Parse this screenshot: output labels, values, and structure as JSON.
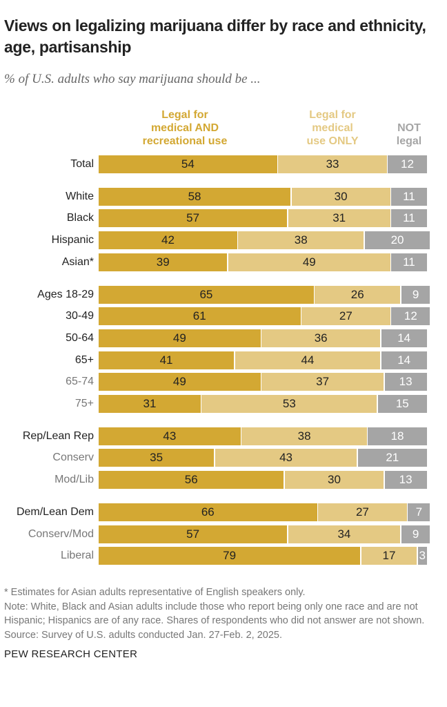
{
  "chart_data": {
    "type": "bar",
    "orientation": "horizontal-stacked",
    "title": "Views on legalizing marijuana differ by race and ethnicity, age, partisanship",
    "subtitle": "% of U.S. adults who say marijuana should be ...",
    "series": [
      {
        "name": "Legal for medical AND recreational use",
        "color": "#D3A833"
      },
      {
        "name": "Legal for medical use ONLY",
        "color": "#E4C983"
      },
      {
        "name": "NOT legal",
        "color": "#A5A5A5"
      }
    ],
    "series_label_lines": [
      [
        "Legal for",
        "medical AND",
        "recreational use"
      ],
      [
        "Legal for",
        "medical",
        "use ONLY"
      ],
      [
        "NOT",
        "legal"
      ]
    ],
    "xlim": [
      0,
      100
    ],
    "rows": [
      {
        "label": "Total",
        "values": [
          54,
          33,
          12
        ],
        "sub": false,
        "group": 0
      },
      {
        "label": "White",
        "values": [
          58,
          30,
          11
        ],
        "sub": false,
        "group": 1
      },
      {
        "label": "Black",
        "values": [
          57,
          31,
          11
        ],
        "sub": false,
        "group": 1
      },
      {
        "label": "Hispanic",
        "values": [
          42,
          38,
          20
        ],
        "sub": false,
        "group": 1
      },
      {
        "label": "Asian*",
        "values": [
          39,
          49,
          11
        ],
        "sub": false,
        "group": 1
      },
      {
        "label": "Ages 18-29",
        "values": [
          65,
          26,
          9
        ],
        "sub": false,
        "group": 2
      },
      {
        "label": "30-49",
        "values": [
          61,
          27,
          12
        ],
        "sub": false,
        "group": 2
      },
      {
        "label": "50-64",
        "values": [
          49,
          36,
          14
        ],
        "sub": false,
        "group": 2
      },
      {
        "label": "65+",
        "values": [
          41,
          44,
          14
        ],
        "sub": false,
        "group": 2
      },
      {
        "label": "65-74",
        "values": [
          49,
          37,
          13
        ],
        "sub": true,
        "group": 2
      },
      {
        "label": "75+",
        "values": [
          31,
          53,
          15
        ],
        "sub": true,
        "group": 2
      },
      {
        "label": "Rep/Lean Rep",
        "values": [
          43,
          38,
          18
        ],
        "sub": false,
        "group": 3
      },
      {
        "label": "Conserv",
        "values": [
          35,
          43,
          21
        ],
        "sub": true,
        "group": 3
      },
      {
        "label": "Mod/Lib",
        "values": [
          56,
          30,
          13
        ],
        "sub": true,
        "group": 3
      },
      {
        "label": "Dem/Lean  Dem",
        "values": [
          66,
          27,
          7
        ],
        "sub": false,
        "group": 4
      },
      {
        "label": "Conserv/Mod",
        "values": [
          57,
          34,
          9
        ],
        "sub": true,
        "group": 4
      },
      {
        "label": "Liberal",
        "values": [
          79,
          17,
          3
        ],
        "sub": true,
        "group": 4
      }
    ]
  },
  "notes": [
    "* Estimates for Asian adults representative of English speakers only.",
    "Note: White, Black and Asian adults include those who report being only one race and are not Hispanic; Hispanics are of any race. Shares of respondents who did not answer are not shown.",
    "Source: Survey of U.S. adults conducted Jan. 27-Feb. 2, 2025."
  ],
  "footer": "PEW RESEARCH CENTER"
}
